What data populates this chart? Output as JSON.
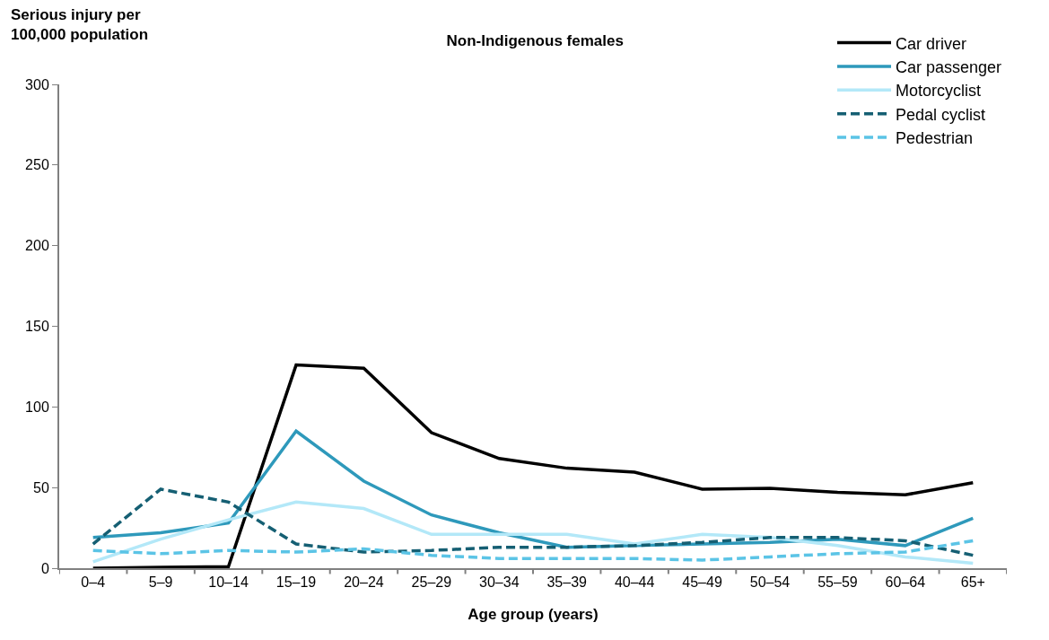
{
  "chart_data": {
    "type": "line",
    "title": "Non-Indigenous females",
    "ylabel": "Serious injury per\n100,000 population",
    "xlabel": "Age group (years)",
    "categories": [
      "0–4",
      "5–9",
      "10–14",
      "15–19",
      "20–24",
      "25–29",
      "30–34",
      "35–39",
      "40–44",
      "45–49",
      "50–54",
      "55–59",
      "60–64",
      "65+"
    ],
    "series": [
      {
        "name": "Car driver",
        "color": "#000000",
        "line_style": "solid",
        "values": [
          0,
          0.5,
          1,
          126,
          124,
          84,
          68,
          62,
          59.5,
          49,
          49.5,
          47,
          45.5,
          53
        ]
      },
      {
        "name": "Car passenger",
        "color": "#2e99bb",
        "line_style": "solid",
        "values": [
          19,
          22,
          28,
          85,
          54,
          33,
          22,
          13,
          14,
          15,
          16,
          18,
          14,
          31
        ]
      },
      {
        "name": "Motorcyclist",
        "color": "#b3e8f8",
        "line_style": "solid",
        "values": [
          4,
          18,
          30,
          41,
          37,
          21,
          21,
          21,
          15,
          21,
          19,
          14,
          7,
          3
        ]
      },
      {
        "name": "Pedal cyclist",
        "color": "#155f73",
        "line_style": "dashed",
        "values": [
          15,
          49,
          41,
          15,
          10,
          11,
          13,
          13,
          14,
          16,
          19,
          19,
          17,
          8
        ]
      },
      {
        "name": "Pedestrian",
        "color": "#5bc4e6",
        "line_style": "dashed",
        "values": [
          11,
          9,
          11,
          10,
          12,
          8,
          6,
          6,
          6,
          5,
          7,
          9,
          10,
          17
        ]
      }
    ],
    "ylim": [
      0,
      300
    ],
    "yticks": [
      0,
      50,
      100,
      150,
      200,
      250,
      300
    ],
    "grid": false,
    "legend": "top right",
    "marker": "none"
  }
}
